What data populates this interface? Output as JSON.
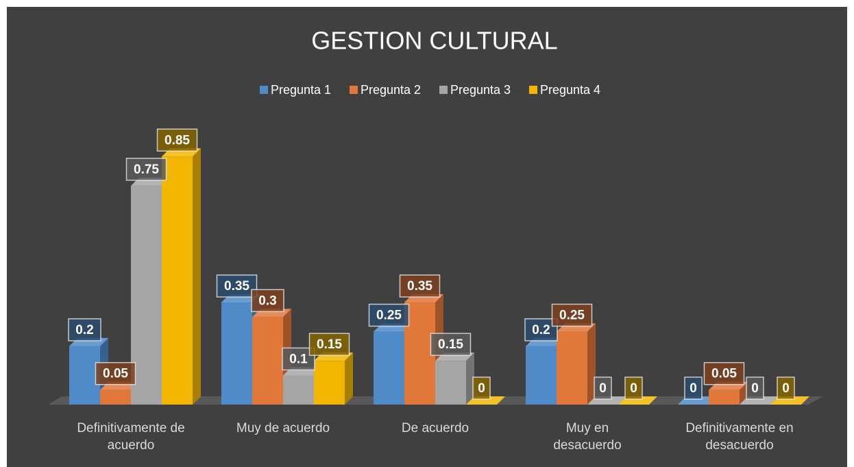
{
  "chart_data": {
    "type": "bar3d",
    "title": "GESTION CULTURAL",
    "categories": [
      "Definitivamente de acuerdo",
      "Muy de acuerdo",
      "De acuerdo",
      "Muy en desacuerdo",
      "Definitivamente en desacuerdo"
    ],
    "series": [
      {
        "name": "Pregunta 1",
        "color": "#4f8ac9",
        "values": [
          0.2,
          0.35,
          0.25,
          0.2,
          0
        ]
      },
      {
        "name": "Pregunta 2",
        "color": "#e2773a",
        "values": [
          0.05,
          0.3,
          0.35,
          0.25,
          0.05
        ]
      },
      {
        "name": "Pregunta 3",
        "color": "#a5a5a5",
        "values": [
          0.75,
          0.1,
          0.15,
          0,
          0
        ]
      },
      {
        "name": "Pregunta 4",
        "color": "#f2b600",
        "values": [
          0.85,
          0.15,
          0,
          0,
          0
        ]
      }
    ],
    "ylim": [
      0,
      0.9
    ],
    "legend": "top",
    "background": "#404040"
  }
}
